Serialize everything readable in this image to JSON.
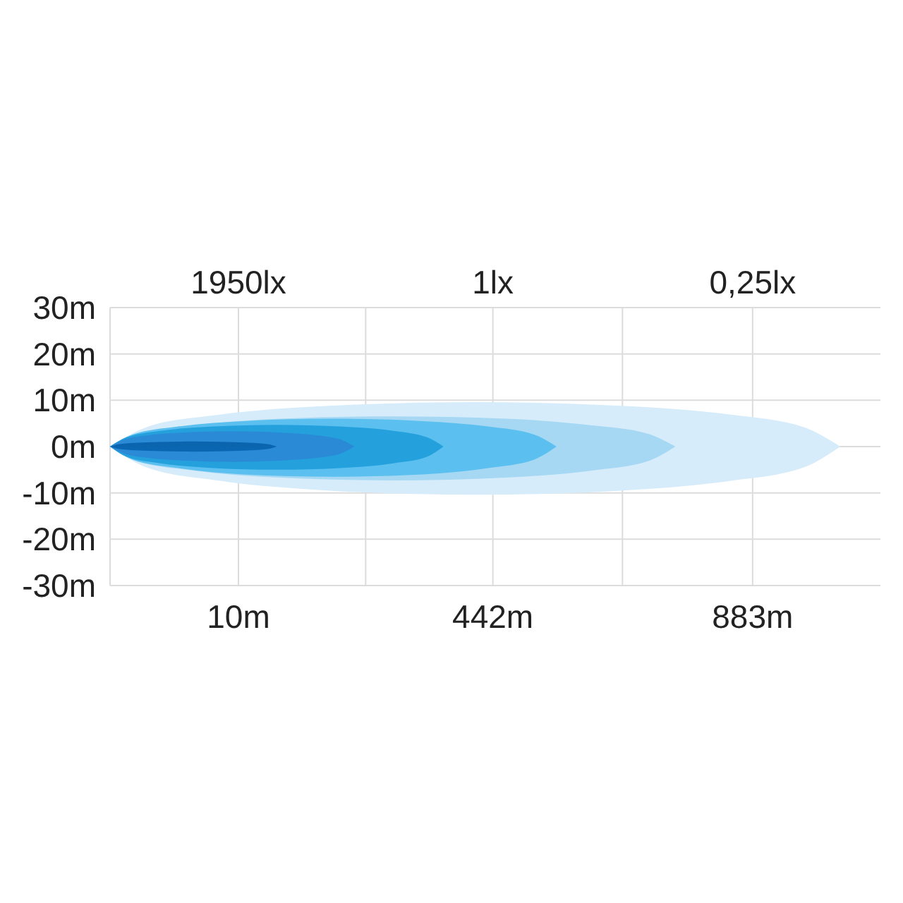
{
  "chart_data": {
    "type": "area",
    "annotations": [
      "1950lx",
      "1lx",
      "0,25lx"
    ],
    "xlim": [
      -208,
      1100
    ],
    "xticks": [
      {
        "value": 10,
        "label": "10m"
      },
      {
        "value": 226,
        "label": null
      },
      {
        "value": 442,
        "label": "442m"
      },
      {
        "value": 662,
        "label": null
      },
      {
        "value": 883,
        "label": "883m"
      }
    ],
    "ylim": [
      -30,
      30
    ],
    "yticks": [
      {
        "value": 30,
        "label": "30m"
      },
      {
        "value": 20,
        "label": "20m"
      },
      {
        "value": 10,
        "label": "10m"
      },
      {
        "value": 0,
        "label": "0m"
      },
      {
        "value": -10,
        "label": "-10m"
      },
      {
        "value": -20,
        "label": "-20m"
      },
      {
        "value": -30,
        "label": "-30m"
      }
    ],
    "grid": true,
    "series": [
      {
        "color": "#d6ecfa",
        "x": [
          -208,
          -146,
          -22,
          164,
          412,
          660,
          846,
          970,
          1032
        ],
        "values": [
          0,
          4.2,
          6.9,
          8.8,
          9.6,
          8.8,
          6.9,
          4.2,
          0
        ]
      },
      {
        "color": "#d6ecfa",
        "x": [
          -208,
          -146,
          -22,
          164,
          412,
          660,
          846,
          970,
          1032
        ],
        "values": [
          0,
          -4.5,
          -7.4,
          -9.5,
          -10.4,
          -9.5,
          -7.4,
          -4.5,
          0
        ]
      },
      {
        "color": "#a6d8f4",
        "x": [
          -208,
          -160,
          -64,
          80,
          272,
          464,
          608,
          704,
          752
        ],
        "values": [
          0,
          2.8,
          4.6,
          6,
          6.5,
          6,
          4.6,
          2.8,
          0
        ]
      },
      {
        "color": "#a6d8f4",
        "x": [
          -208,
          -160,
          -64,
          80,
          272,
          464,
          608,
          704,
          752
        ],
        "values": [
          0,
          -3.2,
          -5.2,
          -6.7,
          -7.3,
          -6.7,
          -5.2,
          -3.2,
          0
        ]
      },
      {
        "color": "#5bc0ef",
        "x": [
          -208,
          -170,
          -94,
          19,
          171,
          323,
          436,
          512,
          550
        ],
        "values": [
          0,
          2.6,
          4.3,
          5.5,
          6,
          5.5,
          4.3,
          2.6,
          0
        ]
      },
      {
        "color": "#5bc0ef",
        "x": [
          -208,
          -170,
          -94,
          19,
          171,
          323,
          436,
          512,
          550
        ],
        "values": [
          0,
          -2.8,
          -4.6,
          -6,
          -6.5,
          -6,
          -4.6,
          -2.8,
          0
        ]
      },
      {
        "color": "#24a0dd",
        "x": [
          -208,
          -180,
          -123,
          -38,
          75,
          188,
          273,
          330,
          358
        ],
        "values": [
          0,
          2,
          3.4,
          4.3,
          4.7,
          4.3,
          3.4,
          2,
          0
        ]
      },
      {
        "color": "#24a0dd",
        "x": [
          -208,
          -180,
          -123,
          -38,
          75,
          188,
          273,
          330,
          358
        ],
        "values": [
          0,
          -2.2,
          -3.6,
          -4.6,
          -5,
          -4.6,
          -3.6,
          -2.2,
          0
        ]
      },
      {
        "color": "#2a8ad6",
        "x": [
          -208,
          -187,
          -146,
          -84,
          0,
          83,
          145,
          186,
          207
        ],
        "values": [
          0,
          1.4,
          2.4,
          3,
          3.3,
          3,
          2.4,
          1.4,
          0
        ]
      },
      {
        "color": "#2a8ad6",
        "x": [
          -208,
          -187,
          -146,
          -84,
          0,
          83,
          145,
          186,
          207
        ],
        "values": [
          0,
          -1.4,
          -2.4,
          -3,
          -3.3,
          -3,
          -2.4,
          -1.4,
          0
        ]
      },
      {
        "color": "#0a64ae",
        "x": [
          -208,
          -194,
          -166,
          -123,
          -66,
          -10,
          33,
          61,
          75
        ],
        "values": [
          0,
          0.5,
          0.8,
          1,
          1.1,
          1,
          0.8,
          0.5,
          0
        ]
      },
      {
        "color": "#0b66b2",
        "x": [
          -208,
          -194,
          -166,
          -123,
          -66,
          -10,
          33,
          61,
          75
        ],
        "values": [
          0,
          -0.5,
          -0.8,
          -1,
          -1.1,
          -1,
          -0.8,
          -0.5,
          0
        ]
      }
    ]
  }
}
